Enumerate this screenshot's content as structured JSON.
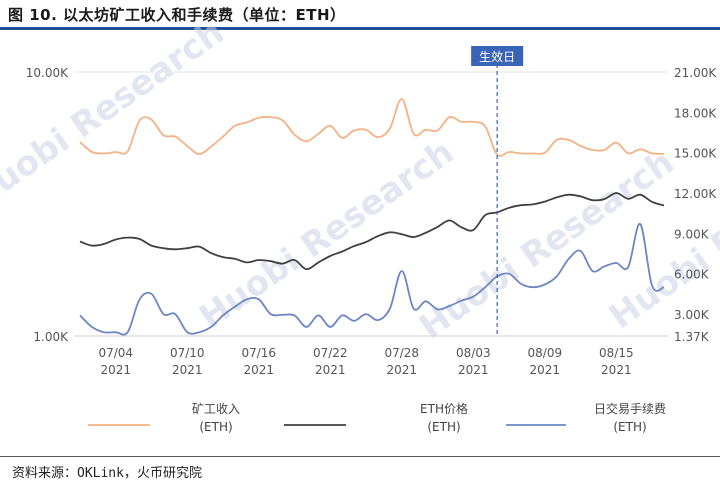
{
  "header": {
    "title": "图 10.  以太坊矿工收入和手续费（单位：ETH）"
  },
  "footer": {
    "source": "资料来源：OKLink，火币研究院"
  },
  "watermark": {
    "text": "Huobi Research",
    "color": "#c9d3e6"
  },
  "chart_data": {
    "type": "line",
    "title": "图 10.  以太坊矿工收入和手续费（单位：ETH）",
    "x_ticks": [
      "07/04\n2021",
      "07/10\n2021",
      "07/16\n2021",
      "07/22\n2021",
      "07/28\n2021",
      "08/03\n2021",
      "08/09\n2021",
      "08/15\n2021"
    ],
    "x_tick_index": [
      3,
      9,
      15,
      21,
      27,
      33,
      39,
      45
    ],
    "left_axis": {
      "scale": "log",
      "ticks": [
        "10.00K",
        "1.00K"
      ],
      "range": [
        1000,
        10000
      ]
    },
    "right_axis": {
      "scale": "linear",
      "ticks": [
        "21.00K",
        "18.00K",
        "15.00K",
        "12.00K",
        "9.00K",
        "6.00K",
        "3.00K",
        "1.37K"
      ],
      "range": [
        1370,
        21000
      ]
    },
    "annotation": {
      "label": "生效日",
      "x": "08/05 2021",
      "x_index": 35
    },
    "colors": {
      "miner": "#f4b183",
      "eth": "#404040",
      "fee": "#6c86c2",
      "annotation": "#3a64b8"
    },
    "x": [
      "07/01",
      "07/02",
      "07/03",
      "07/04",
      "07/05",
      "07/06",
      "07/07",
      "07/08",
      "07/09",
      "07/10",
      "07/11",
      "07/12",
      "07/13",
      "07/14",
      "07/15",
      "07/16",
      "07/17",
      "07/18",
      "07/19",
      "07/20",
      "07/21",
      "07/22",
      "07/23",
      "07/24",
      "07/25",
      "07/26",
      "07/27",
      "07/28",
      "07/29",
      "07/30",
      "07/31",
      "08/01",
      "08/02",
      "08/03",
      "08/04",
      "08/05",
      "08/06",
      "08/07",
      "08/08",
      "08/09",
      "08/10",
      "08/11",
      "08/12",
      "08/13",
      "08/14",
      "08/15",
      "08/16",
      "08/17",
      "08/18",
      "08/19"
    ],
    "series": [
      {
        "name": "矿工收入\n(ETH)",
        "axis": "right",
        "values": [
          15800,
          15050,
          14950,
          15050,
          15100,
          17400,
          17450,
          16300,
          16200,
          15500,
          14900,
          15450,
          16200,
          17000,
          17250,
          17600,
          17650,
          17400,
          16350,
          15850,
          16400,
          17000,
          16100,
          16650,
          16700,
          16150,
          16800,
          19000,
          16400,
          16700,
          16650,
          17650,
          17300,
          17300,
          16950,
          14850,
          15050,
          14950,
          14950,
          15000,
          15950,
          15950,
          15500,
          15200,
          15200,
          15750,
          14950,
          15250,
          14950,
          14900
        ]
      },
      {
        "name": "ETH价格\n(ETH)",
        "axis": "left",
        "values": [
          2280,
          2200,
          2230,
          2320,
          2360,
          2330,
          2200,
          2150,
          2130,
          2150,
          2180,
          2060,
          1990,
          1960,
          1900,
          1940,
          1920,
          1880,
          1940,
          1790,
          1900,
          2010,
          2090,
          2190,
          2270,
          2390,
          2470,
          2430,
          2370,
          2460,
          2590,
          2740,
          2580,
          2520,
          2870,
          2940,
          3060,
          3130,
          3150,
          3230,
          3350,
          3430,
          3380,
          3270,
          3300,
          3480,
          3310,
          3430,
          3220,
          3120
        ]
      },
      {
        "name": "日交易手续费\n(ETH)",
        "axis": "right",
        "values": [
          2900,
          2050,
          1650,
          1650,
          1650,
          4100,
          4500,
          3000,
          3000,
          1650,
          1650,
          2050,
          2900,
          3550,
          4100,
          4100,
          3000,
          2950,
          2900,
          2050,
          2900,
          2050,
          2900,
          2500,
          3000,
          2550,
          3400,
          6200,
          3400,
          3950,
          3350,
          3600,
          4000,
          4300,
          5000,
          5800,
          6000,
          5250,
          5000,
          5200,
          5800,
          7100,
          7700,
          6200,
          6550,
          6800,
          6500,
          9700,
          5100,
          5000
        ]
      }
    ]
  }
}
